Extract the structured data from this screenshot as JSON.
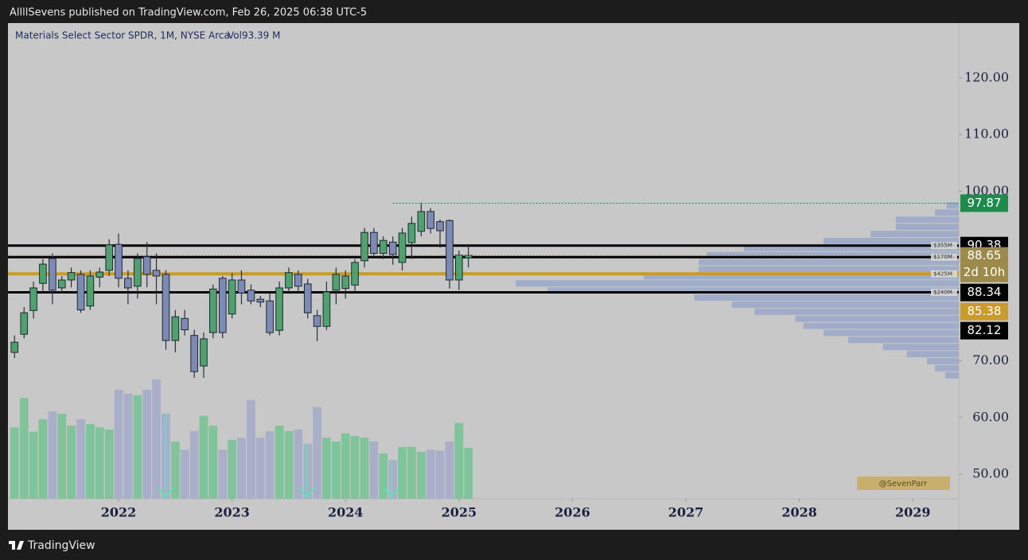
{
  "chart_data": {
    "type": "candlestick",
    "header": "AllllSevens published on TradingView.com, Feb 26, 2025 06:38 UTC-5",
    "title": "Materials Select Sector SPDR, 1M, NYSE Arca",
    "volume_legend": "Vol93.39 M",
    "watermark": "@SevenParr",
    "footer": "TradingView",
    "x": [
      2021.083,
      2021.167,
      2021.25,
      2021.333,
      2021.417,
      2021.5,
      2021.583,
      2021.667,
      2021.75,
      2021.833,
      2021.917,
      2022,
      2022.083,
      2022.167,
      2022.25,
      2022.333,
      2022.417,
      2022.5,
      2022.583,
      2022.667,
      2022.75,
      2022.833,
      2022.917,
      2023,
      2023.083,
      2023.167,
      2023.25,
      2023.333,
      2023.417,
      2023.5,
      2023.583,
      2023.667,
      2023.75,
      2023.833,
      2023.917,
      2024,
      2024.083,
      2024.167,
      2024.25,
      2024.333,
      2024.417,
      2024.5,
      2024.583,
      2024.667,
      2024.75,
      2024.833,
      2024.917,
      2025,
      2025.083
    ],
    "open": [
      71.5,
      74.7,
      78.9,
      83.7,
      88.1,
      82.9,
      84.3,
      85.3,
      79.7,
      84.8,
      86,
      90.6,
      84.6,
      83.2,
      88.4,
      86,
      85.3,
      73.6,
      77.5,
      74.5,
      69.1,
      75,
      84.6,
      78.3,
      84.3,
      82.5,
      80.9,
      80.6,
      75.4,
      82.9,
      85.3,
      83.6,
      78,
      76.1,
      82.5,
      82.8,
      83.4,
      87.7,
      92.7,
      89,
      91,
      87.4,
      90.9,
      92.9,
      96.4,
      94.6,
      94.8,
      84.3,
      88.2
    ],
    "high": [
      74.5,
      79.5,
      84,
      88,
      89,
      85,
      86.5,
      86,
      86,
      86.5,
      91.5,
      92.5,
      86,
      89,
      91,
      89,
      86,
      79,
      79,
      75.5,
      75,
      83.5,
      85,
      85.5,
      86,
      83.5,
      81.5,
      82,
      84,
      86.5,
      86,
      84.5,
      79,
      84,
      86.5,
      86,
      88,
      93.5,
      93.5,
      92,
      92,
      93.5,
      95.5,
      97.9,
      97,
      95,
      95,
      89.5,
      90.4
    ],
    "low": [
      70.5,
      74,
      77.5,
      82,
      80,
      82,
      83,
      78.5,
      79,
      83,
      85,
      83,
      80,
      81,
      83,
      80,
      72,
      71.5,
      74.5,
      67,
      67,
      74,
      74,
      77.5,
      80,
      80,
      79.5,
      74.5,
      74.5,
      82,
      82,
      77.5,
      73.5,
      75.5,
      80,
      81,
      82,
      86.5,
      88.5,
      88,
      87,
      86,
      88,
      92,
      92.5,
      90,
      82.8,
      82.5,
      86.5
    ],
    "close": [
      73.3,
      78.5,
      82.9,
      87.1,
      82.5,
      84.3,
      85.6,
      79,
      85,
      85.7,
      90.5,
      84.6,
      82.9,
      88.1,
      85.3,
      85,
      73.6,
      77.8,
      75.5,
      68.1,
      73.9,
      82.7,
      75,
      84.3,
      82,
      80.6,
      80.4,
      75,
      82.9,
      85.6,
      83.2,
      78.5,
      76.1,
      82.2,
      85.3,
      85,
      87.4,
      92.7,
      89,
      91.3,
      88.8,
      92.6,
      94.3,
      96.4,
      93.4,
      93,
      84.3,
      88.7,
      88.65
    ],
    "volume": [
      131,
      185,
      123,
      146,
      160,
      156,
      134,
      146,
      137,
      131,
      127,
      200,
      193,
      190,
      200,
      219,
      156,
      105,
      90,
      124,
      152,
      134,
      90,
      108,
      112,
      181,
      112,
      124,
      134,
      124,
      127,
      101,
      168,
      112,
      105,
      120,
      115,
      112,
      105,
      83,
      71,
      95,
      95,
      86,
      90,
      88,
      105,
      139,
      93.39
    ],
    "up_color": "#4fa26f",
    "down_color": "#7d8ab5",
    "volume_up_color": "#74c293",
    "volume_down_color": "#a3aac8",
    "xlim": [
      2021.025,
      2029.405
    ],
    "xticks": [
      2022,
      2023,
      2024,
      2025,
      2026,
      2027,
      2028,
      2029
    ],
    "ylim": [
      45.64,
      129.7
    ],
    "yticks": [
      {
        "value": 120,
        "label": "120.00"
      },
      {
        "value": 110,
        "label": "110.00"
      },
      {
        "value": 100,
        "label": "100.00"
      },
      {
        "value": 70,
        "label": "70.00"
      },
      {
        "value": 60,
        "label": "60.00"
      },
      {
        "value": 50,
        "label": "50.00"
      }
    ],
    "grid": false,
    "levels": [
      {
        "value": 97.87,
        "color": "#1e8a4c",
        "style": "dotted"
      },
      {
        "value": 90.38,
        "color": "#000000",
        "style": "solid",
        "profile_label": "$355M"
      },
      {
        "value": 88.34,
        "color": "#000000",
        "style": "solid",
        "profile_label": "$170M"
      },
      {
        "value": 85.38,
        "color": "#c89b2a",
        "style": "solid",
        "profile_label": "$425M"
      },
      {
        "value": 82.12,
        "color": "#000000",
        "style": "solid",
        "profile_label": "$240M"
      }
    ],
    "current_price": {
      "value": 88.65,
      "countdown": "2d 10h",
      "color": "#9b8a49"
    },
    "volume_profile": {
      "color": "#9aa8c8",
      "bins": [
        98,
        96.75,
        95.5,
        94.25,
        93,
        91.75,
        90.5,
        89.25,
        88,
        86.75,
        85.5,
        84.25,
        83,
        81.75,
        80.5,
        79.25,
        78,
        76.75,
        75.5,
        74.25,
        73,
        71.75,
        70.5,
        69.25,
        68,
        66.75
      ],
      "values": [
        20,
        39,
        103,
        103,
        144,
        221,
        351,
        412,
        425,
        425,
        515,
        724,
        672,
        432,
        371,
        334,
        267,
        254,
        221,
        181,
        124,
        85,
        52,
        39,
        22
      ]
    }
  }
}
